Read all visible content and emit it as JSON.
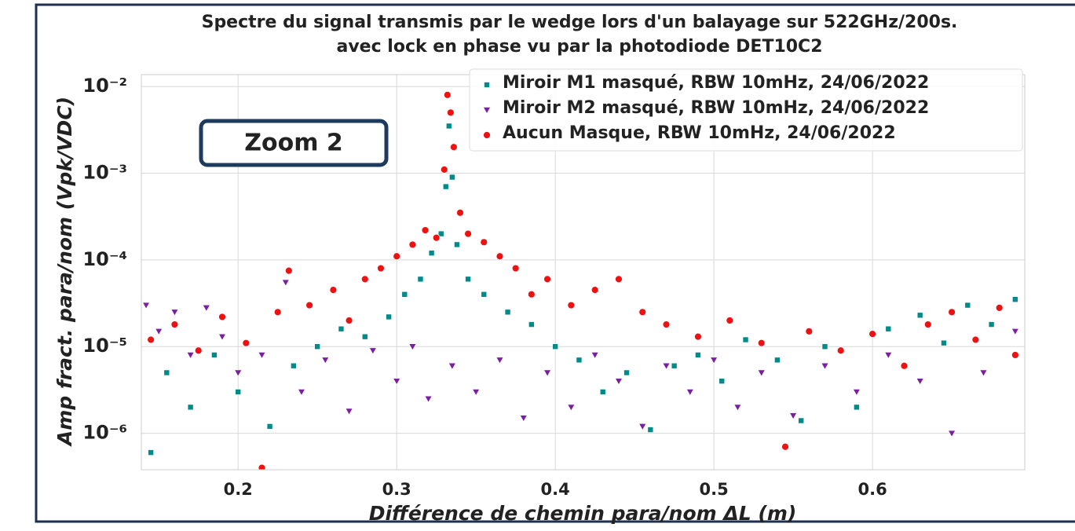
{
  "chart_data": {
    "type": "scatter",
    "title": [
      "Spectre du signal transmis par le wedge lors d'un balayage sur 522GHz/200s.",
      "avec lock en phase vu par la photodiode DET10C2"
    ],
    "xlabel": "Différence de chemin para/nom ΔL (m)",
    "ylabel": "Amp fract. para/nom (Vpk/VDC)",
    "annotation": "Zoom 2",
    "xlim": [
      0.139,
      0.696
    ],
    "xticks": [
      0.2,
      0.3,
      0.4,
      0.5,
      0.6
    ],
    "ylim": [
      3.8e-07,
      0.0137
    ],
    "yticks": [
      {
        "value": 1e-06,
        "label": "10⁻⁶"
      },
      {
        "value": 1e-05,
        "label": "10⁻⁵"
      },
      {
        "value": 0.0001,
        "label": "10⁻⁴"
      },
      {
        "value": 0.001,
        "label": "10⁻³"
      },
      {
        "value": 0.01,
        "label": "10⁻²"
      }
    ],
    "yscale": "log",
    "grid": true,
    "legend": "upper right",
    "series": [
      {
        "name": "Miroir M1 masqué, RBW 10mHz, 24/06/2022",
        "color": "#008b8b",
        "marker": "square",
        "x": [
          0.145,
          0.155,
          0.17,
          0.185,
          0.2,
          0.22,
          0.235,
          0.25,
          0.265,
          0.28,
          0.295,
          0.305,
          0.315,
          0.322,
          0.328,
          0.331,
          0.333,
          0.335,
          0.338,
          0.345,
          0.355,
          0.37,
          0.385,
          0.4,
          0.415,
          0.43,
          0.445,
          0.46,
          0.475,
          0.49,
          0.505,
          0.52,
          0.54,
          0.555,
          0.57,
          0.59,
          0.61,
          0.63,
          0.645,
          0.66,
          0.675,
          0.69
        ],
        "values": [
          6e-07,
          5e-06,
          2e-06,
          8e-06,
          3e-06,
          1.2e-06,
          6e-06,
          1e-05,
          1.6e-05,
          1.3e-05,
          2.2e-05,
          4e-05,
          6e-05,
          0.00012,
          0.0002,
          0.0007,
          0.0035,
          0.0009,
          0.00015,
          6e-05,
          4e-05,
          2.5e-05,
          1.8e-05,
          1e-05,
          7e-06,
          3e-06,
          5e-06,
          1.1e-06,
          6e-06,
          8e-06,
          4e-06,
          1.2e-05,
          7e-06,
          1.4e-06,
          1e-05,
          2e-06,
          1.6e-05,
          2.3e-05,
          1.1e-05,
          3e-05,
          1.8e-05,
          3.5e-05
        ]
      },
      {
        "name": "Miroir M2 masqué, RBW 10mHz, 24/06/2022",
        "color": "#7b1fa2",
        "marker": "triangle-down",
        "x": [
          0.142,
          0.15,
          0.16,
          0.17,
          0.18,
          0.19,
          0.2,
          0.215,
          0.23,
          0.24,
          0.255,
          0.27,
          0.285,
          0.3,
          0.31,
          0.32,
          0.335,
          0.35,
          0.365,
          0.38,
          0.395,
          0.41,
          0.425,
          0.44,
          0.455,
          0.47,
          0.485,
          0.5,
          0.515,
          0.53,
          0.55,
          0.57,
          0.59,
          0.61,
          0.63,
          0.65,
          0.67,
          0.69
        ],
        "values": [
          3e-05,
          1.5e-05,
          2.5e-05,
          8e-06,
          2.8e-05,
          1.3e-05,
          5e-06,
          8e-06,
          5.5e-05,
          3e-06,
          7e-06,
          1.8e-06,
          9e-06,
          4e-06,
          1e-05,
          2.5e-06,
          6e-06,
          3e-06,
          7e-06,
          1.5e-06,
          5e-06,
          2e-06,
          8e-06,
          4e-06,
          1.2e-06,
          6e-06,
          3e-06,
          7e-06,
          2e-06,
          5e-06,
          1.6e-06,
          6e-06,
          3e-06,
          8e-06,
          4e-06,
          1e-06,
          5e-06,
          1.5e-05
        ]
      },
      {
        "name": "Aucun Masque, RBW 10mHz, 24/06/2022",
        "color": "#ee1111",
        "marker": "circle",
        "x": [
          0.145,
          0.16,
          0.175,
          0.19,
          0.205,
          0.215,
          0.225,
          0.232,
          0.245,
          0.26,
          0.27,
          0.28,
          0.29,
          0.3,
          0.31,
          0.318,
          0.325,
          0.33,
          0.332,
          0.334,
          0.336,
          0.34,
          0.345,
          0.355,
          0.365,
          0.375,
          0.385,
          0.395,
          0.41,
          0.425,
          0.44,
          0.455,
          0.47,
          0.49,
          0.51,
          0.53,
          0.545,
          0.56,
          0.58,
          0.6,
          0.62,
          0.635,
          0.65,
          0.665,
          0.68,
          0.69
        ],
        "values": [
          1.2e-05,
          1.8e-05,
          9e-06,
          2.2e-05,
          1.1e-05,
          4e-07,
          2.5e-05,
          7.5e-05,
          3e-05,
          4.5e-05,
          2e-05,
          6e-05,
          8e-05,
          0.00011,
          0.00015,
          0.00022,
          0.00018,
          0.0011,
          0.008,
          0.005,
          0.002,
          0.00035,
          0.0002,
          0.00016,
          0.00011,
          8e-05,
          4e-05,
          6e-05,
          3e-05,
          4.5e-05,
          6e-05,
          2.5e-05,
          1.8e-05,
          1.3e-05,
          2e-05,
          1.1e-05,
          7e-07,
          1.5e-05,
          9e-06,
          1.4e-05,
          6e-06,
          1.8e-05,
          2.5e-05,
          1.2e-05,
          2.8e-05,
          8e-06
        ]
      }
    ]
  }
}
